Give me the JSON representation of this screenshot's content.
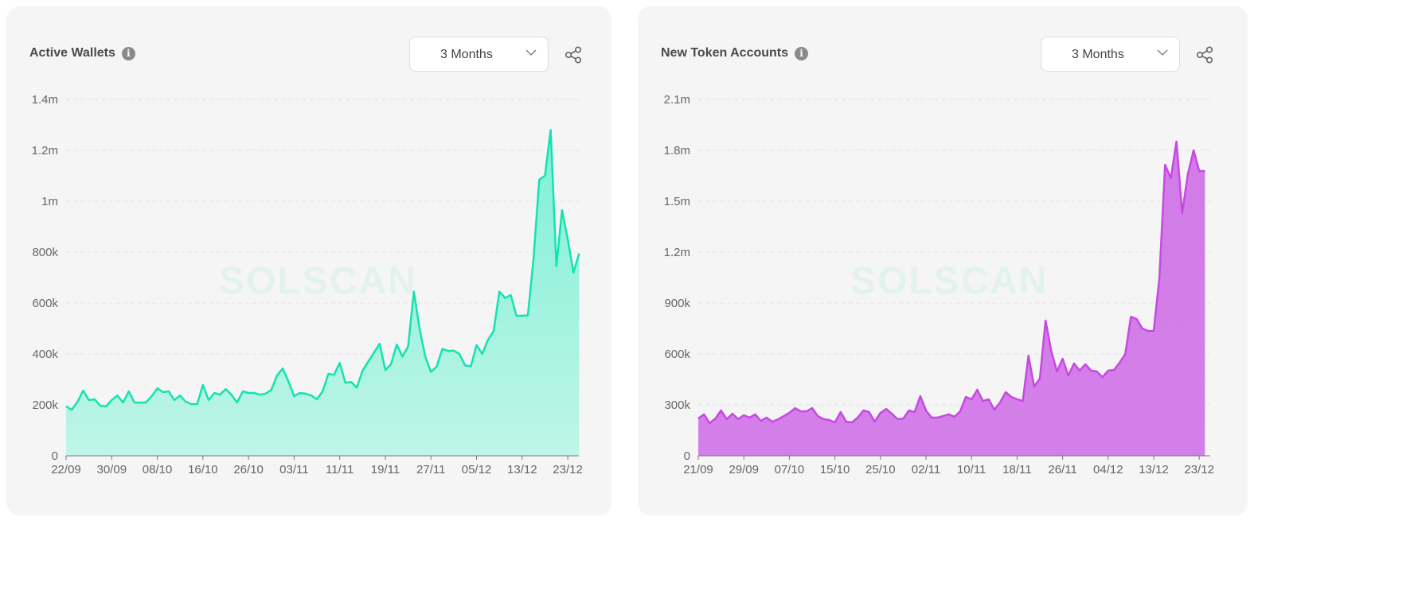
{
  "watermark": "SOLSCAN",
  "cards": [
    {
      "title": "Active Wallets",
      "range": "3 Months",
      "icons": {
        "info": "info-icon",
        "share": "share-icon",
        "dropdown": "chevron-down-icon"
      }
    },
    {
      "title": "New Token Accounts",
      "range": "3 Months",
      "icons": {
        "info": "info-icon",
        "share": "share-icon",
        "dropdown": "chevron-down-icon"
      }
    }
  ],
  "chart_data": [
    {
      "type": "area",
      "title": "Active Wallets",
      "ylim": [
        0,
        1400000
      ],
      "yticks": [
        {
          "value": 0,
          "label": "0"
        },
        {
          "value": 200000,
          "label": "200k"
        },
        {
          "value": 400000,
          "label": "400k"
        },
        {
          "value": 600000,
          "label": "600k"
        },
        {
          "value": 800000,
          "label": "800k"
        },
        {
          "value": 1000000,
          "label": "1m"
        },
        {
          "value": 1200000,
          "label": "1.2m"
        },
        {
          "value": 1400000,
          "label": "1.4m"
        }
      ],
      "xticks": [
        {
          "index": 0,
          "label": "22/09"
        },
        {
          "index": 8,
          "label": "30/09"
        },
        {
          "index": 16,
          "label": "08/10"
        },
        {
          "index": 24,
          "label": "16/10"
        },
        {
          "index": 32,
          "label": "26/10"
        },
        {
          "index": 40,
          "label": "03/11"
        },
        {
          "index": 48,
          "label": "11/11"
        },
        {
          "index": 56,
          "label": "19/11"
        },
        {
          "index": 64,
          "label": "27/11"
        },
        {
          "index": 72,
          "label": "05/12"
        },
        {
          "index": 80,
          "label": "13/12"
        },
        {
          "index": 88,
          "label": "23/12"
        }
      ],
      "grid": true,
      "line_color": "#14e3b0",
      "fill_top": "#7ef0d6",
      "fill_bottom": "#bff5e7",
      "values": [
        194000,
        181000,
        212000,
        256000,
        219000,
        222000,
        197000,
        194000,
        219000,
        237000,
        209000,
        253000,
        209000,
        209000,
        209000,
        234000,
        265000,
        250000,
        253000,
        219000,
        237000,
        212000,
        203000,
        203000,
        278000,
        219000,
        247000,
        240000,
        262000,
        240000,
        209000,
        253000,
        247000,
        247000,
        240000,
        244000,
        259000,
        315000,
        343000,
        293000,
        234000,
        247000,
        244000,
        237000,
        222000,
        253000,
        322000,
        318000,
        365000,
        287000,
        290000,
        268000,
        334000,
        370000,
        405000,
        440000,
        337000,
        360000,
        437000,
        390000,
        430000,
        645000,
        500000,
        390000,
        330000,
        350000,
        420000,
        412000,
        413000,
        400000,
        355000,
        352000,
        435000,
        400000,
        455000,
        490000,
        645000,
        620000,
        632000,
        550000,
        550000,
        552000,
        775000,
        1085000,
        1100000,
        1280000,
        745000,
        965000,
        850000,
        720000,
        795000
      ]
    },
    {
      "type": "area",
      "title": "New Token Accounts",
      "ylim": [
        0,
        2100000
      ],
      "yticks": [
        {
          "value": 0,
          "label": "0"
        },
        {
          "value": 300000,
          "label": "300k"
        },
        {
          "value": 600000,
          "label": "600k"
        },
        {
          "value": 900000,
          "label": "900k"
        },
        {
          "value": 1200000,
          "label": "1.2m"
        },
        {
          "value": 1500000,
          "label": "1.5m"
        },
        {
          "value": 1800000,
          "label": "1.8m"
        },
        {
          "value": 2100000,
          "label": "2.1m"
        }
      ],
      "xticks": [
        {
          "index": 0,
          "label": "21/09"
        },
        {
          "index": 8,
          "label": "29/09"
        },
        {
          "index": 16,
          "label": "07/10"
        },
        {
          "index": 24,
          "label": "15/10"
        },
        {
          "index": 32,
          "label": "25/10"
        },
        {
          "index": 40,
          "label": "02/11"
        },
        {
          "index": 48,
          "label": "10/11"
        },
        {
          "index": 56,
          "label": "18/11"
        },
        {
          "index": 64,
          "label": "26/11"
        },
        {
          "index": 72,
          "label": "04/12"
        },
        {
          "index": 80,
          "label": "13/12"
        },
        {
          "index": 88,
          "label": "23/12"
        }
      ],
      "grid": true,
      "line_color": "#c64ae2",
      "fill_top": "#d27be8",
      "fill_bottom": "#d47fe9",
      "values": [
        220000,
        244000,
        192000,
        220000,
        267000,
        216000,
        248000,
        216000,
        239000,
        225000,
        244000,
        206000,
        225000,
        201000,
        215000,
        234000,
        253000,
        281000,
        262000,
        262000,
        281000,
        234000,
        216000,
        211000,
        197000,
        258000,
        201000,
        197000,
        225000,
        267000,
        258000,
        201000,
        253000,
        276000,
        248000,
        216000,
        220000,
        267000,
        258000,
        352000,
        267000,
        225000,
        225000,
        234000,
        244000,
        230000,
        262000,
        347000,
        333000,
        389000,
        323000,
        333000,
        272000,
        314000,
        375000,
        347000,
        333000,
        323000,
        590000,
        408000,
        455000,
        797000,
        619000,
        497000,
        572000,
        473000,
        544000,
        502000,
        539000,
        502000,
        497000,
        464000,
        502000,
        506000,
        548000,
        600000,
        820000,
        806000,
        750000,
        736000,
        736000,
        1045000,
        1715000,
        1636000,
        1852000,
        1430000,
        1660000,
        1800000,
        1678000,
        1678000
      ]
    }
  ]
}
